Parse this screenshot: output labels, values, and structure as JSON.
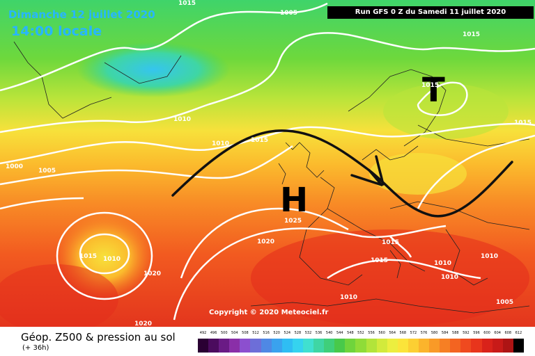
{
  "header": {
    "date": "Dimanche 12 juillet 2020",
    "time": "14:00 locale",
    "run": "Run GFS 0 Z du Samedi 11 juillet 2020"
  },
  "copyright": "Copyright © 2020 Meteociel.fr",
  "footer": {
    "title": "Géop. Z500 & pression au sol",
    "subtitle": "(+ 36h)"
  },
  "symbols": {
    "high": "H",
    "low": "T"
  },
  "isobar_labels": [
    "1015",
    "1005",
    "1015",
    "1010",
    "1010",
    "1015",
    "1000",
    "1005",
    "1015",
    "1025",
    "1020",
    "1015",
    "1010",
    "1020",
    "1015",
    "1015",
    "1010",
    "1010",
    "1010",
    "1010",
    "1005",
    "1020",
    "1015"
  ],
  "color_scale": {
    "ticks": [
      "492",
      "496",
      "500",
      "504",
      "508",
      "512",
      "516",
      "520",
      "524",
      "528",
      "532",
      "536",
      "540",
      "544",
      "548",
      "552",
      "556",
      "560",
      "564",
      "568",
      "572",
      "576",
      "580",
      "584",
      "588",
      "592",
      "596",
      "600",
      "604",
      "608",
      "612"
    ],
    "colors": [
      "#2a0033",
      "#4b0b5e",
      "#6a1b85",
      "#8a2fa8",
      "#8c4fcf",
      "#6d6ed8",
      "#4f88e4",
      "#3aa2ee",
      "#2fbdf3",
      "#35d3ef",
      "#40e0d0",
      "#3fd6a4",
      "#3fcf7a",
      "#48c94a",
      "#6fd43c",
      "#8fdc38",
      "#b2e43a",
      "#d2ea3c",
      "#ecee3f",
      "#fbe43a",
      "#fccf33",
      "#fbb42c",
      "#f99a27",
      "#f67f24",
      "#f36421",
      "#ef4a1f",
      "#e8351c",
      "#d9221a",
      "#c81a18",
      "#ad1414",
      "#000000"
    ]
  }
}
